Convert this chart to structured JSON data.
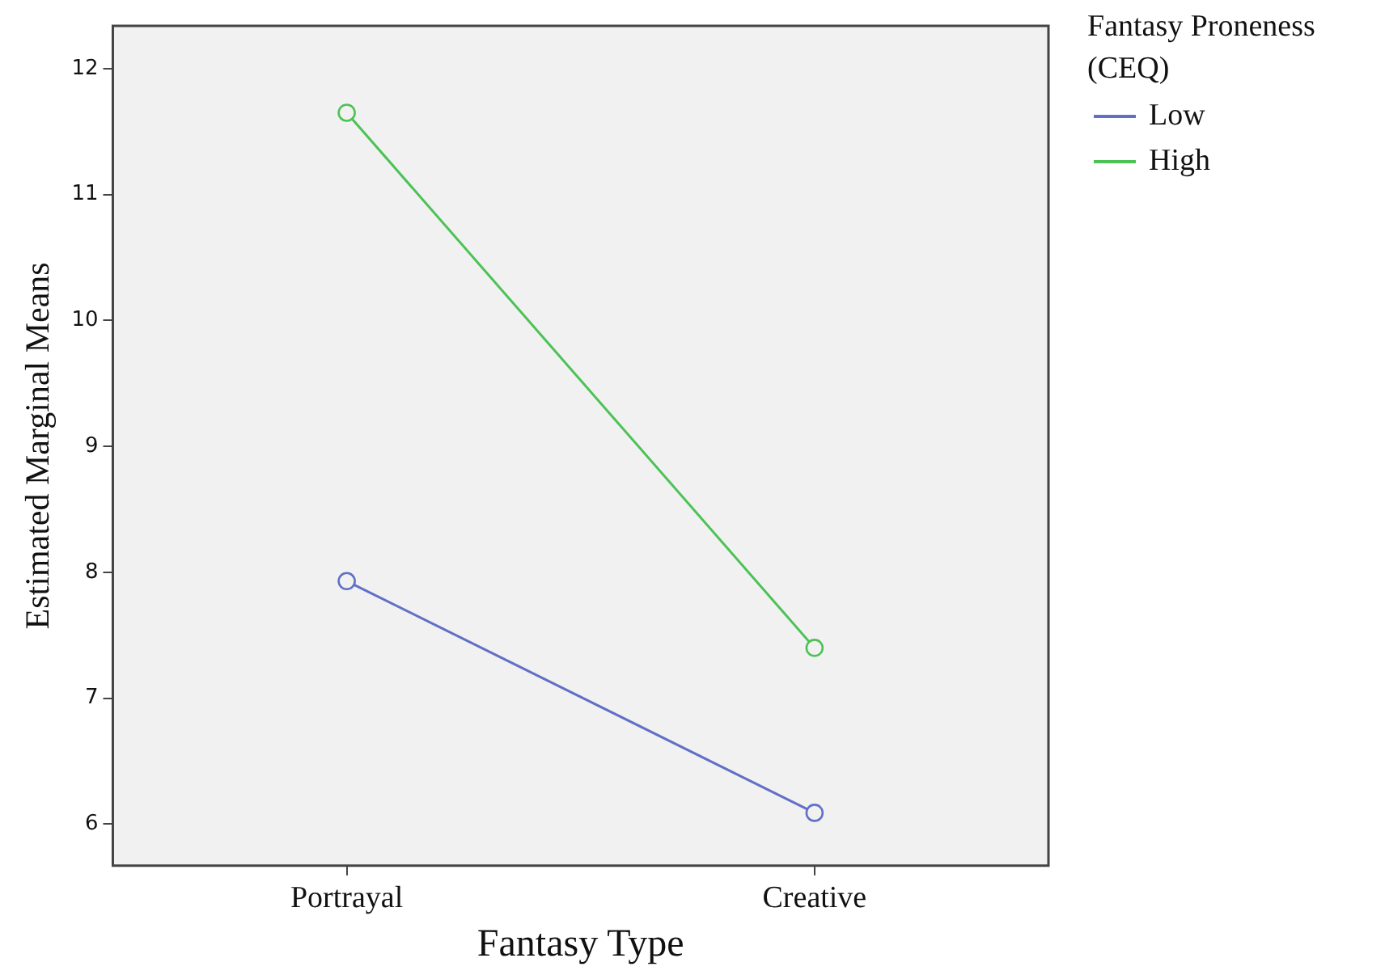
{
  "chart_data": {
    "type": "line",
    "xlabel": "Fantasy Type",
    "ylabel": "Estimated Marginal Means",
    "legend_title": "Fantasy Proneness (CEQ)",
    "categories": [
      "Portrayal",
      "Creative"
    ],
    "series": [
      {
        "name": "Low",
        "color": "#6170c6",
        "values": [
          7.93,
          6.09
        ]
      },
      {
        "name": "High",
        "color": "#4cc255",
        "values": [
          11.65,
          7.4
        ]
      }
    ],
    "ylim": [
      5.67,
      12.34
    ],
    "yticks": [
      6,
      7,
      8,
      9,
      10,
      11,
      12
    ],
    "grid": false,
    "legend": "right",
    "marker": "circle",
    "line_style": "solid"
  }
}
